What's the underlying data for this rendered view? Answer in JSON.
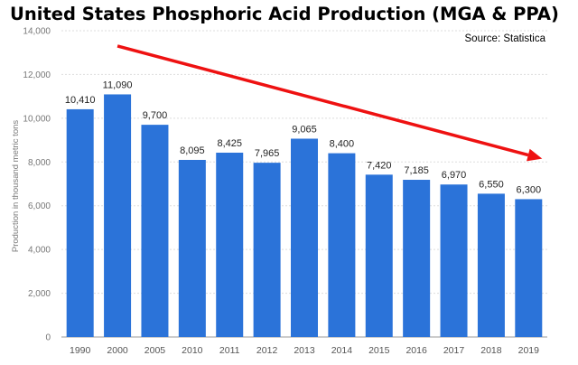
{
  "chart_data": {
    "type": "bar",
    "title": "United States Phosphoric Acid Production (MGA & PPA)",
    "source": "Source: Statistica",
    "ylabel": "Production in thousand metric tons",
    "xlabel": "",
    "categories": [
      "1990",
      "2000",
      "2005",
      "2010",
      "2011",
      "2012",
      "2013",
      "2014",
      "2015",
      "2016",
      "2017",
      "2018",
      "2019"
    ],
    "values": [
      10410,
      11090,
      9700,
      8095,
      8425,
      7965,
      9065,
      8400,
      7420,
      7185,
      6970,
      6550,
      6300
    ],
    "value_labels": [
      "10,410",
      "11,090",
      "9,700",
      "8,095",
      "8,425",
      "7,965",
      "9,065",
      "8,400",
      "7,420",
      "7,185",
      "6,970",
      "6,550",
      "6,300"
    ],
    "yticks": [
      0,
      2000,
      4000,
      6000,
      8000,
      10000,
      12000,
      14000
    ],
    "ytick_labels": [
      "0",
      "2,000",
      "4,000",
      "6,000",
      "8,000",
      "10,000",
      "12,000",
      "14,000"
    ],
    "ylim": [
      0,
      14000
    ],
    "grid": true,
    "bar_color": "#2b73d9",
    "annotations": [
      {
        "type": "trend-arrow",
        "from": {
          "x": "2000",
          "y": 13300
        },
        "to": {
          "x": "2019",
          "y": 8150
        },
        "color": "#ee1111"
      }
    ]
  }
}
